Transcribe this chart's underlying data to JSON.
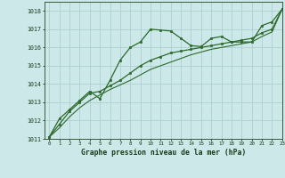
{
  "x": [
    0,
    1,
    2,
    3,
    4,
    5,
    6,
    7,
    8,
    9,
    10,
    11,
    12,
    13,
    14,
    15,
    16,
    17,
    18,
    19,
    20,
    21,
    22,
    23
  ],
  "line1": [
    1011.1,
    1012.1,
    1012.6,
    1013.1,
    1013.6,
    1013.2,
    1014.2,
    1015.3,
    1016.0,
    1016.3,
    1017.0,
    1016.95,
    1016.9,
    1016.5,
    1016.1,
    1016.05,
    1016.5,
    1016.6,
    1016.3,
    1016.3,
    1016.3,
    1017.2,
    1017.4,
    1018.1
  ],
  "line2": [
    1011.1,
    1011.8,
    1012.5,
    1013.0,
    1013.5,
    1013.6,
    1013.9,
    1014.2,
    1014.6,
    1015.0,
    1015.3,
    1015.5,
    1015.7,
    1015.8,
    1015.9,
    1016.0,
    1016.1,
    1016.2,
    1016.3,
    1016.4,
    1016.5,
    1016.8,
    1017.0,
    1018.1
  ],
  "line3": [
    1011.1,
    1011.6,
    1012.2,
    1012.7,
    1013.1,
    1013.4,
    1013.7,
    1013.95,
    1014.2,
    1014.5,
    1014.8,
    1015.0,
    1015.2,
    1015.4,
    1015.6,
    1015.75,
    1015.9,
    1016.0,
    1016.1,
    1016.2,
    1016.3,
    1016.6,
    1016.85,
    1018.1
  ],
  "line_color": "#2d6a2d",
  "bg_color": "#cce8e8",
  "grid_color": "#aed0d0",
  "xlabel": "Graphe pression niveau de la mer (hPa)",
  "ylim": [
    1011,
    1018.5
  ],
  "xlim": [
    -0.5,
    23
  ],
  "yticks": [
    1011,
    1012,
    1013,
    1014,
    1015,
    1016,
    1017,
    1018
  ],
  "xticks": [
    0,
    1,
    2,
    3,
    4,
    5,
    6,
    7,
    8,
    9,
    10,
    11,
    12,
    13,
    14,
    15,
    16,
    17,
    18,
    19,
    20,
    21,
    22,
    23
  ]
}
